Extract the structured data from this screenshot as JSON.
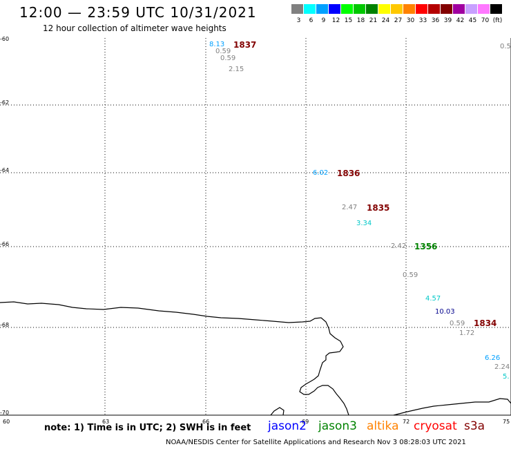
{
  "title": "12:00 — 23:59 UTC 10/31/2021",
  "subtitle": "12 hour collection of altimeter wave heights",
  "legend": {
    "colors": [
      "#808080",
      "#00ffff",
      "#00a0ff",
      "#0000ff",
      "#00ff00",
      "#00c800",
      "#008200",
      "#ffff00",
      "#ffc800",
      "#ff8200",
      "#ff0000",
      "#b40000",
      "#820000",
      "#a000a0",
      "#c8a0ff",
      "#ff78ff",
      "#000000"
    ],
    "labels": [
      "3",
      "6",
      "9",
      "12",
      "15",
      "18",
      "21",
      "24",
      "27",
      "30",
      "33",
      "36",
      "39",
      "42",
      "45",
      "70",
      "(ft)"
    ]
  },
  "lat_labels": [
    "-60",
    "-62",
    "-64",
    "-66",
    "-68",
    "-70"
  ],
  "lon_labels": [
    "60",
    "63",
    "66",
    "69",
    "72",
    "75"
  ],
  "values": [
    {
      "text": "8.13",
      "color": "#00a0ff"
    },
    {
      "text": "0.59",
      "color": "#808080"
    },
    {
      "text": "0.59",
      "color": "#808080"
    },
    {
      "text": "2.15",
      "color": "#808080"
    },
    {
      "text": "0.5",
      "color": "#808080"
    },
    {
      "text": "6.02",
      "color": "#00a0ff"
    },
    {
      "text": "2.47",
      "color": "#808080"
    },
    {
      "text": "3.34",
      "color": "#00c8c8"
    },
    {
      "text": "2.42",
      "color": "#808080"
    },
    {
      "text": "0.59",
      "color": "#808080"
    },
    {
      "text": "4.57",
      "color": "#00c8c8"
    },
    {
      "text": "10.03",
      "color": "#00008c"
    },
    {
      "text": "0.59",
      "color": "#808080"
    },
    {
      "text": "1.72",
      "color": "#808080"
    },
    {
      "text": "6.26",
      "color": "#00a0ff"
    },
    {
      "text": "2.24",
      "color": "#808080"
    },
    {
      "text": "5.",
      "color": "#00c8c8"
    }
  ],
  "pass_times": [
    {
      "text": "1837",
      "color": "#820000"
    },
    {
      "text": "1836",
      "color": "#820000"
    },
    {
      "text": "1835",
      "color": "#820000"
    },
    {
      "text": "1356",
      "color": "#008200"
    },
    {
      "text": "1834",
      "color": "#820000"
    }
  ],
  "note": "note: 1) Time is in UTC; 2) SWH is in feet",
  "satellites": [
    {
      "text": "jason2",
      "color": "#0000ff"
    },
    {
      "text": "jason3",
      "color": "#008200"
    },
    {
      "text": "altika",
      "color": "#ff8200"
    },
    {
      "text": "cryosat",
      "color": "#ff0000"
    },
    {
      "text": "s3a",
      "color": "#820000"
    }
  ],
  "credit": "NOAA/NESDIS Center for Satellite Applications and Research    Nov  3 08:28:03 UTC 2021"
}
